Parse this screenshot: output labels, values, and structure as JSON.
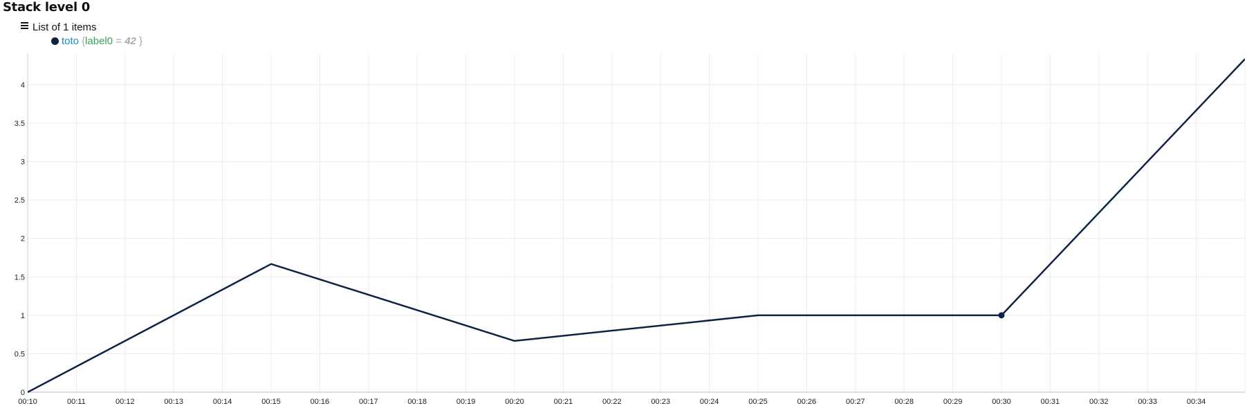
{
  "stack": {
    "title": "Stack level 0"
  },
  "list": {
    "header": "List of 1 items",
    "icon": "list-icon"
  },
  "series_item": {
    "name": "toto",
    "open_brace": "{",
    "label_key": "label0",
    "label_eq": "=",
    "label_value": "42",
    "close_brace": "}"
  },
  "colors": {
    "series": "#0e2344",
    "series_name": "#1b8fd6",
    "label_key": "#3aa35c",
    "muted": "#aaaaaa",
    "grid": "#ececec"
  },
  "chart_data": {
    "type": "line",
    "title": "",
    "xlabel": "",
    "ylabel": "",
    "grid": true,
    "x_ticks": [
      "00:10",
      "00:11",
      "00:12",
      "00:13",
      "00:14",
      "00:15",
      "00:16",
      "00:17",
      "00:18",
      "00:19",
      "00:20",
      "00:21",
      "00:22",
      "00:23",
      "00:24",
      "00:25",
      "00:26",
      "00:27",
      "00:28",
      "00:29",
      "00:30",
      "00:31",
      "00:32",
      "00:33",
      "00:34"
    ],
    "y_ticks": [
      "0",
      "0.5",
      "1",
      "1.5",
      "2",
      "2.5",
      "3",
      "3.5",
      "4"
    ],
    "xlim": [
      "00:10",
      "00:35"
    ],
    "ylim": [
      0,
      4.4
    ],
    "series": [
      {
        "name": "toto",
        "x": [
          "00:10",
          "00:15",
          "00:20",
          "00:25",
          "00:30",
          "00:35"
        ],
        "values": [
          0,
          1.667,
          0.667,
          1,
          1,
          4.333
        ],
        "highlighted_point": "00:30"
      }
    ]
  }
}
